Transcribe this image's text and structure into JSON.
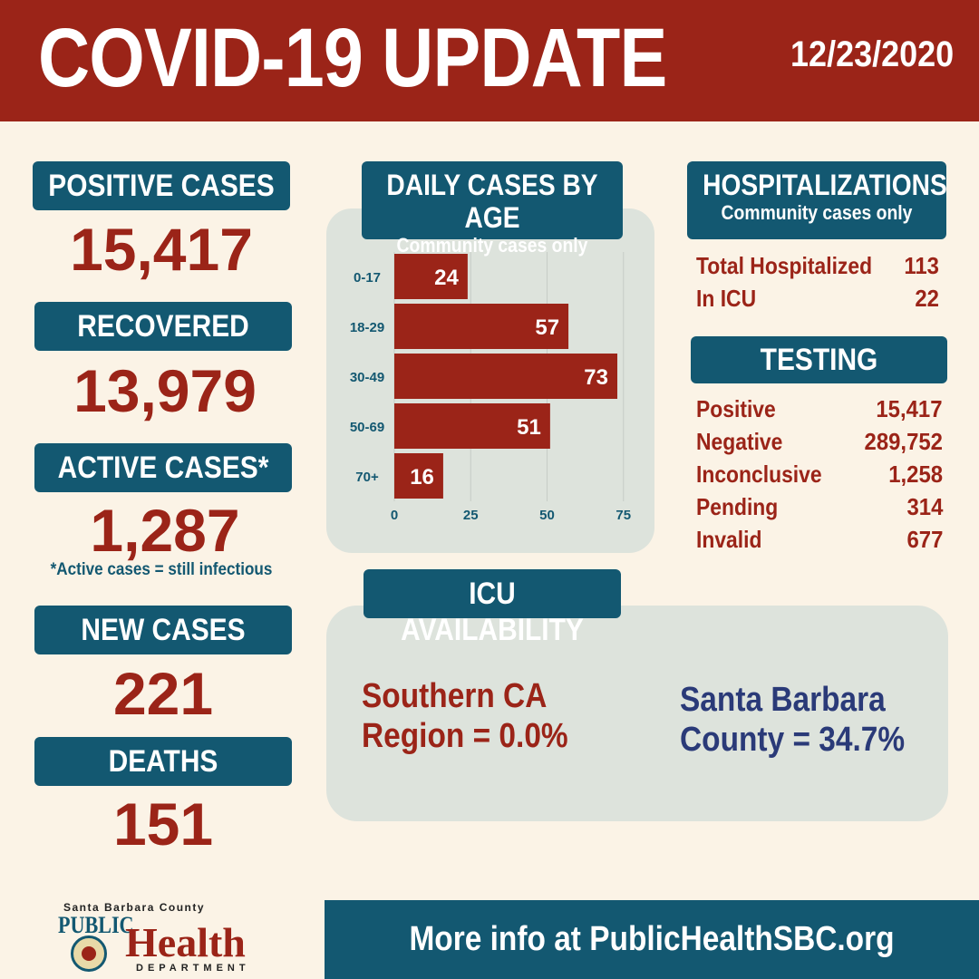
{
  "header": {
    "title": "COVID-19 UPDATE",
    "date": "12/23/2020"
  },
  "left_stats": [
    {
      "label": "POSITIVE CASES",
      "value": "15,417"
    },
    {
      "label": "RECOVERED",
      "value": "13,979"
    },
    {
      "label": "ACTIVE CASES*",
      "value": "1,287"
    },
    {
      "label": "NEW CASES",
      "value": "221"
    },
    {
      "label": "DEATHS",
      "value": "151"
    }
  ],
  "active_footnote": "*Active cases = still infectious",
  "daily_cases": {
    "title": "DAILY CASES BY AGE",
    "subtitle": "Community cases only"
  },
  "chart_data": {
    "type": "bar",
    "orientation": "horizontal",
    "title": "DAILY CASES BY AGE",
    "subtitle": "Community cases only",
    "categories": [
      "0-17",
      "18-29",
      "30-49",
      "50-69",
      "70+"
    ],
    "values": [
      24,
      57,
      73,
      51,
      16
    ],
    "xticks": [
      "0",
      "25",
      "50",
      "75"
    ],
    "xlim": [
      0,
      75
    ],
    "grid": true,
    "data_labels": true,
    "bar_color": "#9b2418"
  },
  "hospitalizations": {
    "title": "HOSPITALIZATIONS",
    "subtitle": "Community cases only",
    "rows": [
      {
        "label": "Total Hospitalized",
        "value": "113"
      },
      {
        "label": "In ICU",
        "value": "22"
      }
    ]
  },
  "testing": {
    "title": "TESTING",
    "rows": [
      {
        "label": "Positive",
        "value": "15,417"
      },
      {
        "label": "Negative",
        "value": "289,752"
      },
      {
        "label": "Inconclusive",
        "value": "1,258"
      },
      {
        "label": "Pending",
        "value": "314"
      },
      {
        "label": "Invalid",
        "value": "677"
      }
    ]
  },
  "icu": {
    "title": "ICU AVAILABILITY",
    "southern_line1": "Southern CA",
    "southern_line2": "Region = 0.0%",
    "sb_line1": "Santa Barbara",
    "sb_line2": "County = 34.7%"
  },
  "footer": {
    "logo_county": "Santa Barbara County",
    "logo_public": "PUBLIC",
    "logo_health": "Health",
    "logo_department": "DEPARTMENT",
    "info": "More info at PublicHealthSBC.org"
  },
  "colors": {
    "red": "#9b2418",
    "teal": "#135871",
    "cream": "#fbf3e6",
    "panel": "#dde3dc",
    "navy": "#2a3a78"
  }
}
